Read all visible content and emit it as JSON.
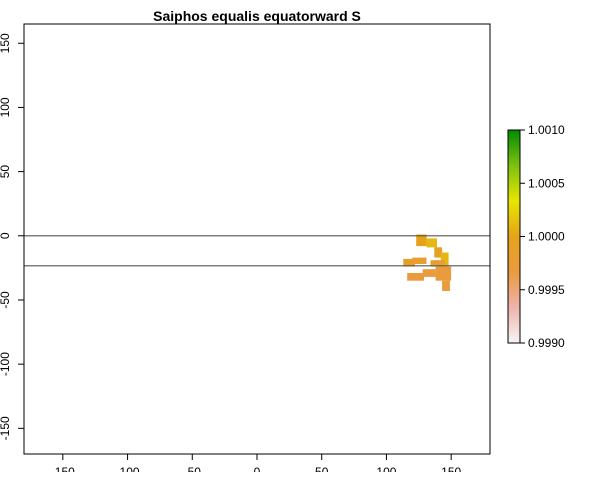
{
  "chart_data": {
    "type": "heatmap",
    "title": "Saiphos equalis equatorward S",
    "xlabel": "",
    "ylabel": "",
    "xlim": [
      -180,
      180
    ],
    "ylim": [
      -170,
      165
    ],
    "x_ticks": [
      -150,
      -100,
      -50,
      0,
      50,
      100,
      150
    ],
    "x_tick_labels": [
      "-150",
      "-100",
      "-50",
      "0",
      "50",
      "100",
      "150"
    ],
    "y_ticks": [
      150,
      100,
      50,
      0,
      -50,
      -100,
      -150
    ],
    "y_tick_labels": [
      "150",
      "100",
      "50",
      "0",
      "-50",
      "-100",
      "-150"
    ],
    "reference_lines_y": [
      0,
      -23.4
    ],
    "grid": false,
    "legend": {
      "placement": "right",
      "ticks": [
        1.001,
        1.0005,
        1.0,
        0.9995,
        0.999
      ],
      "tick_labels": [
        "1.0010",
        "1.0005",
        "1.0000",
        "0.9995",
        "0.9990"
      ],
      "range": [
        0.999,
        1.001
      ],
      "color_stops": [
        "#f5f5f5",
        "#eeb3ac",
        "#ea9a3f",
        "#e6a31a",
        "#e6e600",
        "#7ec010",
        "#008c00"
      ]
    },
    "raster": {
      "clusters": [
        {
          "x": [
            123,
            131
          ],
          "y": [
            -8,
            1
          ],
          "value": 1.0
        },
        {
          "x": [
            131,
            139
          ],
          "y": [
            -9,
            -2
          ],
          "value": 1.0001
        },
        {
          "x": [
            137,
            143
          ],
          "y": [
            -17,
            -9
          ],
          "value": 0.9999
        },
        {
          "x": [
            142,
            148
          ],
          "y": [
            -24,
            -13
          ],
          "value": 1.0001
        },
        {
          "x": [
            113,
            122
          ],
          "y": [
            -24,
            -18
          ],
          "value": 0.9999
        },
        {
          "x": [
            120,
            131
          ],
          "y": [
            -22,
            -17
          ],
          "value": 0.9998
        },
        {
          "x": [
            134,
            145
          ],
          "y": [
            -24,
            -19
          ],
          "value": 0.9998
        },
        {
          "x": [
            138,
            150
          ],
          "y": [
            -35,
            -24
          ],
          "value": 0.9997
        },
        {
          "x": [
            116,
            129
          ],
          "y": [
            -35,
            -29
          ],
          "value": 0.9997
        },
        {
          "x": [
            128,
            138
          ],
          "y": [
            -32,
            -26
          ],
          "value": 0.9997
        },
        {
          "x": [
            143,
            149
          ],
          "y": [
            -43,
            -35
          ],
          "value": 0.9997
        }
      ]
    }
  }
}
